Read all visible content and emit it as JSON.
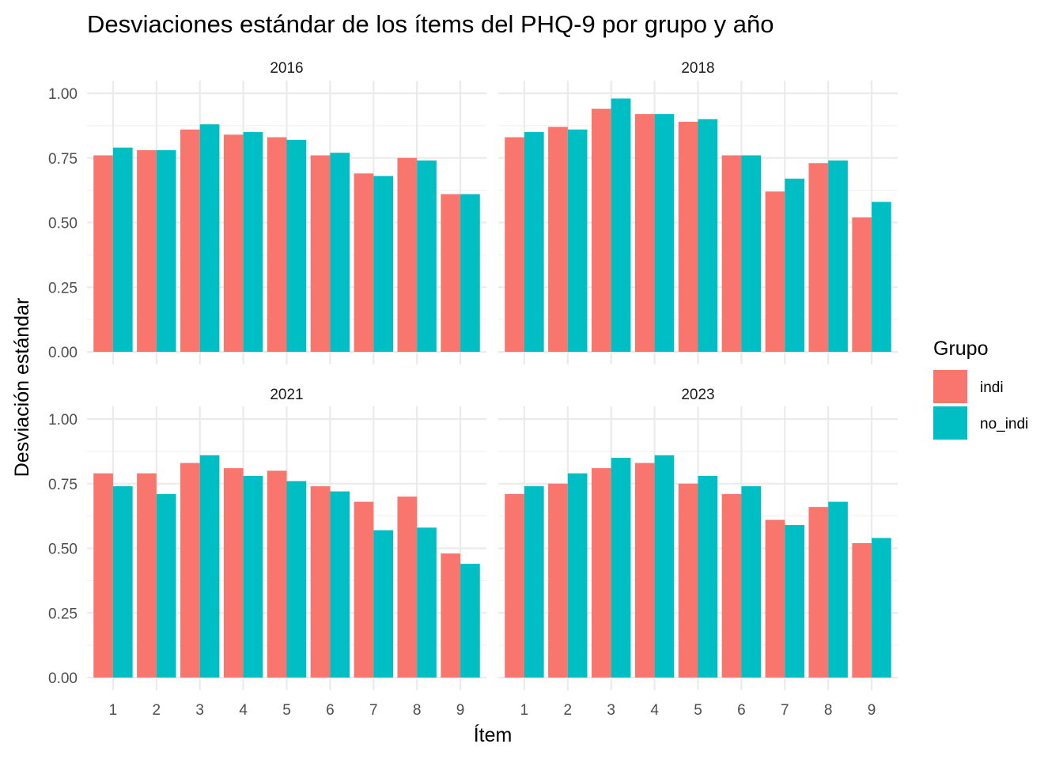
{
  "chart_data": {
    "type": "bar",
    "title": "Desviaciones estándar de los ítems del PHQ-9 por grupo y año",
    "xlabel": "Ítem",
    "ylabel": "Desviación estándar",
    "ylim": [
      0,
      1.0
    ],
    "yticks": [
      "0.00",
      "0.25",
      "0.50",
      "0.75",
      "1.00"
    ],
    "categories": [
      "1",
      "2",
      "3",
      "4",
      "5",
      "6",
      "7",
      "8",
      "9"
    ],
    "grid": true,
    "legend": {
      "title": "Grupo",
      "placement": "right",
      "entries": [
        {
          "label": "indi",
          "color": "#F8766D"
        },
        {
          "label": "no_indi",
          "color": "#00BFC4"
        }
      ]
    },
    "panels": [
      {
        "label": "2016",
        "series": [
          {
            "name": "indi",
            "values": [
              0.76,
              0.78,
              0.86,
              0.84,
              0.83,
              0.76,
              0.69,
              0.75,
              0.61
            ]
          },
          {
            "name": "no_indi",
            "values": [
              0.79,
              0.78,
              0.88,
              0.85,
              0.82,
              0.77,
              0.68,
              0.74,
              0.61
            ]
          }
        ]
      },
      {
        "label": "2018",
        "series": [
          {
            "name": "indi",
            "values": [
              0.83,
              0.87,
              0.94,
              0.92,
              0.89,
              0.76,
              0.62,
              0.73,
              0.52
            ]
          },
          {
            "name": "no_indi",
            "values": [
              0.85,
              0.86,
              0.98,
              0.92,
              0.9,
              0.76,
              0.67,
              0.74,
              0.58
            ]
          }
        ]
      },
      {
        "label": "2021",
        "series": [
          {
            "name": "indi",
            "values": [
              0.79,
              0.79,
              0.83,
              0.81,
              0.8,
              0.74,
              0.68,
              0.7,
              0.48
            ]
          },
          {
            "name": "no_indi",
            "values": [
              0.74,
              0.71,
              0.86,
              0.78,
              0.76,
              0.72,
              0.57,
              0.58,
              0.44
            ]
          }
        ]
      },
      {
        "label": "2023",
        "series": [
          {
            "name": "indi",
            "values": [
              0.71,
              0.75,
              0.81,
              0.83,
              0.75,
              0.71,
              0.61,
              0.66,
              0.52
            ]
          },
          {
            "name": "no_indi",
            "values": [
              0.74,
              0.79,
              0.85,
              0.86,
              0.78,
              0.74,
              0.59,
              0.68,
              0.54
            ]
          }
        ]
      }
    ]
  }
}
